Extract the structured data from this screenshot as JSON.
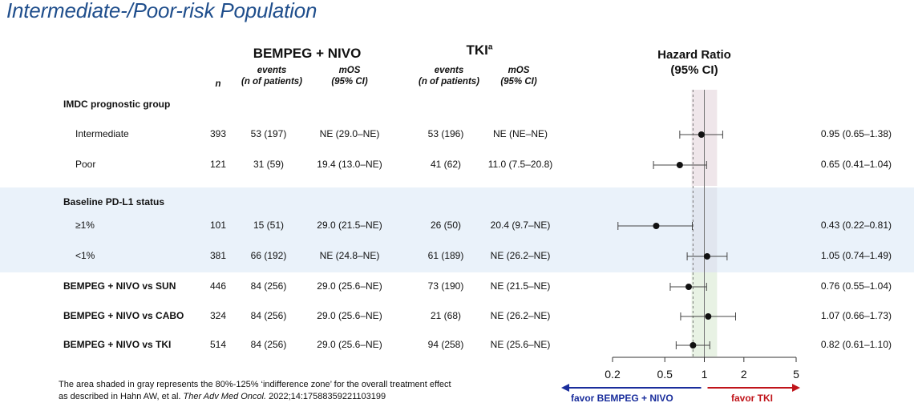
{
  "title": "Intermediate-/Poor-risk Population",
  "headers": {
    "n": "n",
    "group1": "BEMPEG + NIVO",
    "group2": "TKI",
    "group2_sup": "a",
    "events": "events",
    "events_sub": "(n of patients)",
    "mos": "mOS",
    "mos_sub": "(95% CI)",
    "hr": "Hazard Ratio",
    "hr_sub": "(95% CI)"
  },
  "sections": {
    "imdc": "IMDC prognostic group",
    "pdl1": "Baseline PD-L1 status"
  },
  "chart_data": {
    "type": "forest",
    "xscale": "log",
    "xlim": [
      0.2,
      5
    ],
    "xticks": [
      "0.2",
      "0.5",
      "1",
      "2",
      "5"
    ],
    "indifference_zone": [
      0.8,
      1.25
    ],
    "reference_line": 1,
    "overall_estimate_line": 0.82,
    "rows": [
      {
        "label": "Intermediate",
        "n": "393",
        "ev1": "53 (197)",
        "mos1": "NE (29.0–NE)",
        "ev2": "53 (196)",
        "mos2": "NE (NE–NE)",
        "hr": 0.95,
        "lo": 0.65,
        "hi": 1.38,
        "hr_text": "0.95 (0.65–1.38)"
      },
      {
        "label": "Poor",
        "n": "121",
        "ev1": "31 (59)",
        "mos1": "19.4 (13.0–NE)",
        "ev2": "41 (62)",
        "mos2": "11.0 (7.5–20.8)",
        "hr": 0.65,
        "lo": 0.41,
        "hi": 1.04,
        "hr_text": "0.65 (0.41–1.04)"
      },
      {
        "label": "≥1%",
        "n": "101",
        "ev1": "15 (51)",
        "mos1": "29.0 (21.5–NE)",
        "ev2": "26 (50)",
        "mos2": "20.4 (9.7–NE)",
        "hr": 0.43,
        "lo": 0.22,
        "hi": 0.81,
        "hr_text": "0.43 (0.22–0.81)"
      },
      {
        "label": "<1%",
        "n": "381",
        "ev1": "66 (192)",
        "mos1": "NE (24.8–NE)",
        "ev2": "61 (189)",
        "mos2": "NE (26.2–NE)",
        "hr": 1.05,
        "lo": 0.74,
        "hi": 1.49,
        "hr_text": "1.05 (0.74–1.49)"
      },
      {
        "label": "BEMPEG + NIVO vs SUN",
        "n": "446",
        "ev1": "84 (256)",
        "mos1": "29.0 (25.6–NE)",
        "ev2": "73 (190)",
        "mos2": "NE (21.5–NE)",
        "hr": 0.76,
        "lo": 0.55,
        "hi": 1.04,
        "hr_text": "0.76 (0.55–1.04)"
      },
      {
        "label": "BEMPEG + NIVO vs CABO",
        "n": "324",
        "ev1": "84 (256)",
        "mos1": "29.0 (25.6–NE)",
        "ev2": "21 (68)",
        "mos2": "NE (26.2–NE)",
        "hr": 1.07,
        "lo": 0.66,
        "hi": 1.73,
        "hr_text": "1.07 (0.66–1.73)"
      },
      {
        "label": "BEMPEG + NIVO vs TKI",
        "n": "514",
        "ev1": "84 (256)",
        "mos1": "29.0 (25.6–NE)",
        "ev2": "94 (258)",
        "mos2": "NE (25.6–NE)",
        "hr": 0.82,
        "lo": 0.61,
        "hi": 1.1,
        "hr_text": "0.82 (0.61–1.10)"
      }
    ]
  },
  "favor": {
    "left": "favor BEMPEG + NIVO",
    "right": "favor TKI",
    "left_color": "#1a2e9c",
    "right_color": "#c0141a"
  },
  "footnote": {
    "line1": "The area shaded in gray represents the 80%-125% ‘indifference zone’ for the overall treatment effect",
    "line2_prefix": "as described in Hahn AW, et al. ",
    "line2_journal": "Ther Adv Med Oncol.",
    "line2_suffix": " 2022;14:17588359221103199"
  }
}
